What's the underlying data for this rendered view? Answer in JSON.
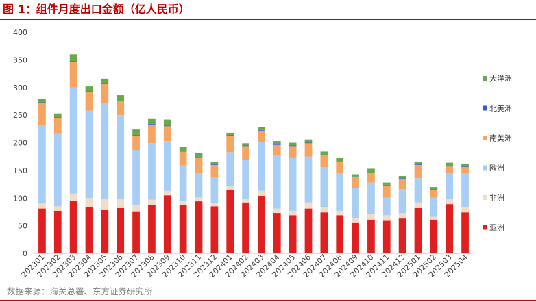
{
  "title": "图 1：组件月度出口金额（亿人民币）",
  "source": "数据来源：海关总署、东方证券研究所",
  "chart_data": {
    "type": "bar",
    "stacked": true,
    "title": "图 1：组件月度出口金额（亿人民币）",
    "xlabel": "",
    "ylabel": "",
    "ylim": [
      0,
      400
    ],
    "yticks": [
      0,
      50,
      100,
      150,
      200,
      250,
      300,
      350,
      400
    ],
    "legend_position": "right",
    "categories": [
      "202301",
      "202302",
      "202303",
      "202304",
      "202305",
      "202306",
      "202307",
      "202308",
      "202309",
      "202310",
      "202311",
      "202312",
      "202401",
      "202402",
      "202403",
      "202404",
      "202405",
      "202406",
      "202407",
      "202408",
      "202409",
      "202410",
      "202411",
      "202412",
      "202501",
      "202502",
      "202503",
      "202504"
    ],
    "series": [
      {
        "name": "亚洲",
        "color": "#e02020",
        "values": [
          81,
          77,
          95,
          84,
          79,
          82,
          76,
          88,
          105,
          87,
          94,
          85,
          115,
          92,
          104,
          73,
          69,
          81,
          74,
          69,
          56,
          61,
          60,
          63,
          82,
          61,
          89,
          74
        ]
      },
      {
        "name": "非洲",
        "color": "#f0dcc8",
        "values": [
          9,
          8,
          13,
          16,
          19,
          17,
          11,
          9,
          8,
          8,
          7,
          6,
          6,
          7,
          9,
          8,
          8,
          11,
          10,
          8,
          8,
          10,
          9,
          10,
          10,
          5,
          9,
          10
        ]
      },
      {
        "name": "欧洲",
        "color": "#a9cef5",
        "values": [
          142,
          132,
          192,
          158,
          174,
          151,
          100,
          102,
          90,
          64,
          45,
          46,
          62,
          70,
          88,
          97,
          96,
          83,
          72,
          68,
          54,
          57,
          32,
          43,
          44,
          35,
          47,
          61
        ]
      },
      {
        "name": "南美洲",
        "color": "#f7a460",
        "values": [
          40,
          28,
          47,
          34,
          35,
          25,
          26,
          34,
          27,
          25,
          28,
          23,
          30,
          25,
          21,
          18,
          21,
          24,
          21,
          20,
          20,
          17,
          22,
          19,
          24,
          14,
          12,
          11
        ]
      },
      {
        "name": "北美洲",
        "color": "#2e5bd7",
        "values": [
          1,
          1,
          1,
          1,
          1,
          1,
          1,
          1,
          1,
          1,
          1,
          1,
          1,
          1,
          1,
          1,
          1,
          1,
          1,
          1,
          1,
          1,
          1,
          1,
          1,
          1,
          1,
          1
        ]
      },
      {
        "name": "大洋洲",
        "color": "#6aa84f",
        "values": [
          6,
          7,
          12,
          9,
          8,
          10,
          10,
          9,
          11,
          7,
          7,
          5,
          4,
          4,
          6,
          6,
          5,
          6,
          6,
          7,
          4,
          7,
          4,
          4,
          5,
          4,
          6,
          5
        ]
      }
    ],
    "legend_order": [
      "大洋洲",
      "北美洲",
      "南美洲",
      "欧洲",
      "非洲",
      "亚洲"
    ]
  }
}
